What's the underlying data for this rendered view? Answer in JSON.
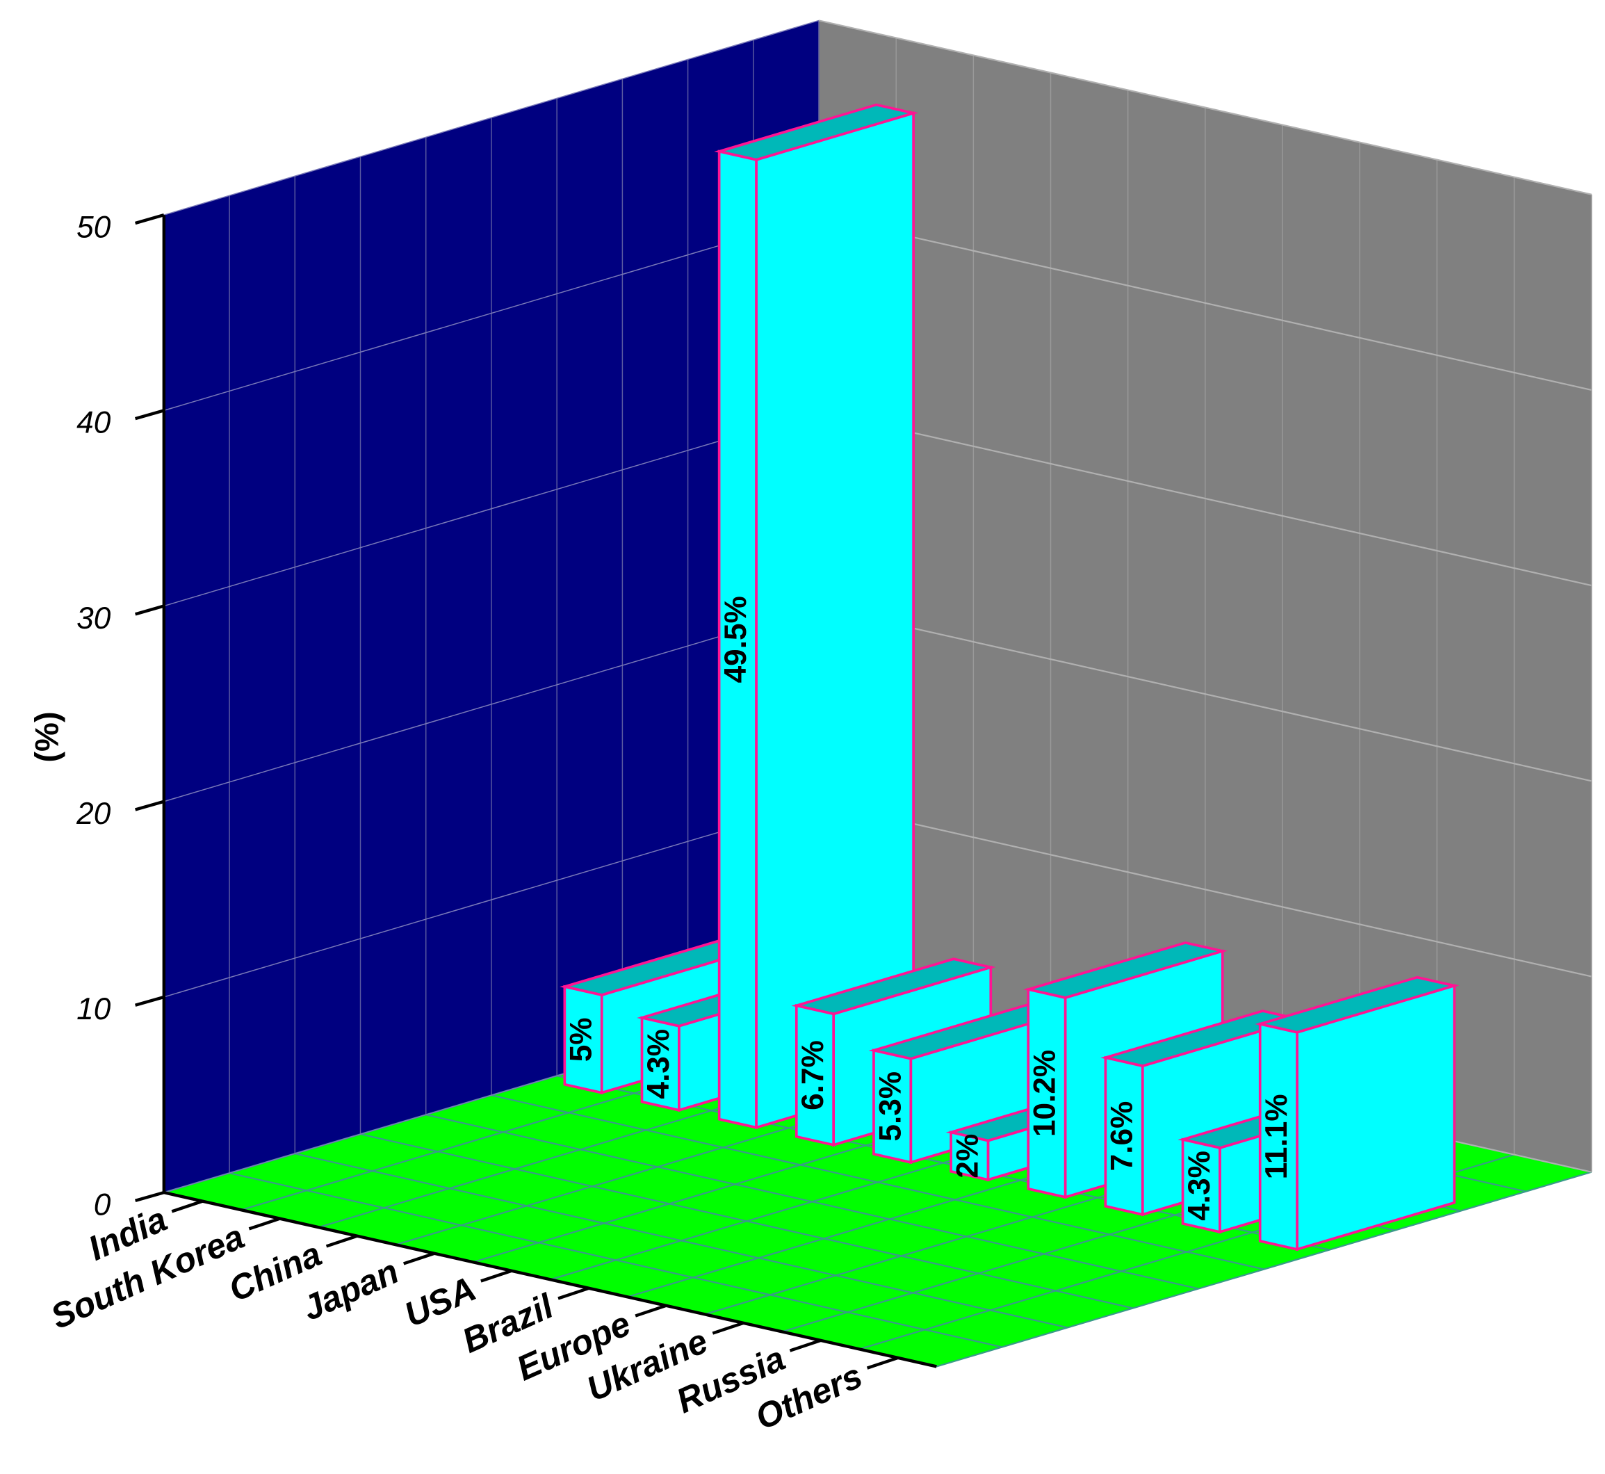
{
  "chart_data": {
    "type": "bar",
    "y_label": "(%)",
    "categories": [
      "India",
      "South Korea",
      "China",
      "Japan",
      "USA",
      "Brazil",
      "Europe",
      "Ukraine",
      "Russia",
      "Others"
    ],
    "values": [
      5,
      4.3,
      49.5,
      6.7,
      5.3,
      2,
      10.2,
      7.6,
      4.3,
      11.1
    ],
    "value_labels": [
      "5%",
      "4.3%",
      "49.5%",
      "6.7%",
      "5.3%",
      "2%",
      "10.2%",
      "7.6%",
      "4.3%",
      "11.1%"
    ],
    "color": "#00ffff",
    "edge_color": "#ff1493",
    "ylim": [
      0,
      50
    ],
    "yticks": [
      0,
      10,
      20,
      30,
      40,
      50
    ],
    "grid": true
  }
}
